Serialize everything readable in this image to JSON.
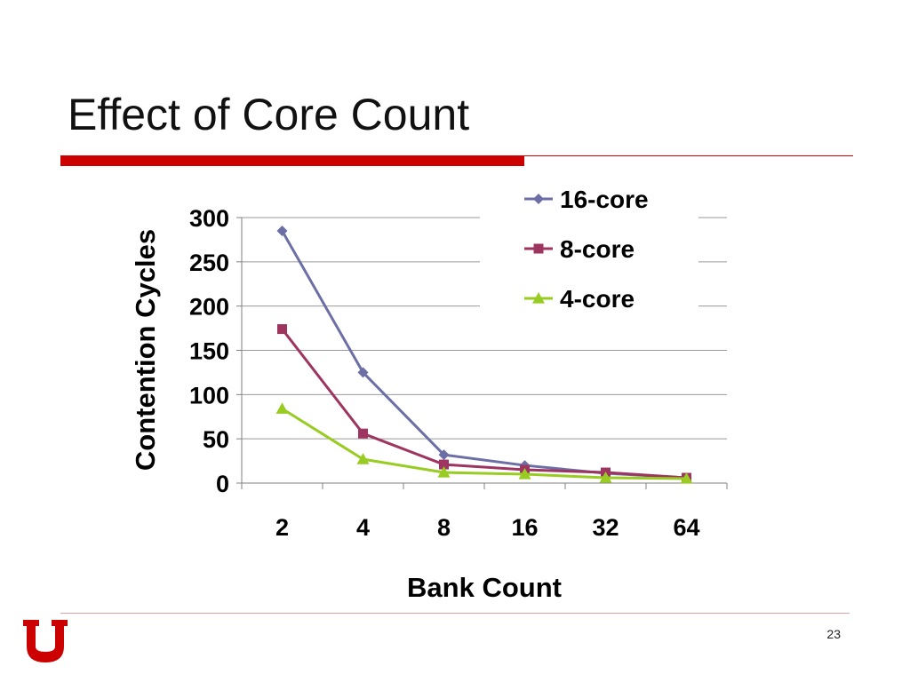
{
  "slide": {
    "title": "Effect of Core Count",
    "page_number": "23"
  },
  "colors": {
    "accent": "#cc0000",
    "footer_line": "#e6a0a0",
    "grid": "#9a9a9a",
    "series_16": "#6b6fa6",
    "series_8": "#9e3460",
    "series_4": "#99cc22"
  },
  "chart_data": {
    "type": "line",
    "title": "",
    "xlabel": "Bank Count",
    "ylabel": "Contention Cycles",
    "categories": [
      "2",
      "4",
      "8",
      "16",
      "32",
      "64"
    ],
    "ylim": [
      0,
      300
    ],
    "yticks": [
      "0",
      "50",
      "100",
      "150",
      "200",
      "250",
      "300"
    ],
    "grid": true,
    "legend_position": "top-right",
    "series": [
      {
        "name": "16-core",
        "marker": "diamond",
        "color": "#6b6fa6",
        "values": [
          285,
          125,
          32,
          20,
          11,
          6
        ]
      },
      {
        "name": "8-core",
        "marker": "square",
        "color": "#9e3460",
        "values": [
          174,
          56,
          21,
          15,
          12,
          6
        ]
      },
      {
        "name": "4-core",
        "marker": "triangle",
        "color": "#99cc22",
        "values": [
          84,
          27,
          12,
          10,
          6,
          5
        ]
      }
    ]
  }
}
